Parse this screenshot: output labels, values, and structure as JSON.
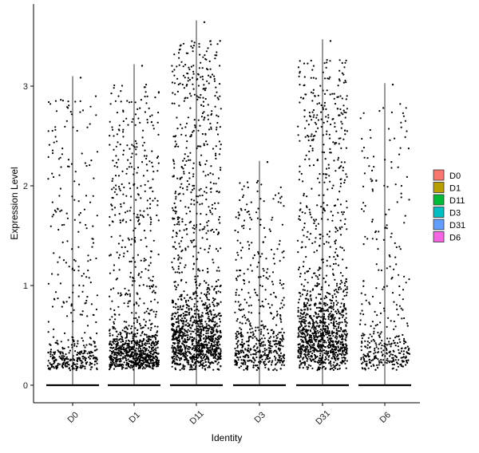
{
  "chart_data": {
    "type": "scatter",
    "xlabel": "Identity",
    "ylabel": "Expression Level",
    "categories": [
      "D0",
      "D1",
      "D11",
      "D3",
      "D31",
      "D6"
    ],
    "ylim": [
      -0.2,
      3.85
    ],
    "yticks": [
      0,
      1,
      2,
      3
    ],
    "legend": {
      "position": "right",
      "entries": [
        {
          "label": "D0",
          "color": "#F8766D"
        },
        {
          "label": "D1",
          "color": "#B79F00"
        },
        {
          "label": "D11",
          "color": "#00BA38"
        },
        {
          "label": "D3",
          "color": "#00BFC4"
        },
        {
          "label": "D31",
          "color": "#619CFF"
        },
        {
          "label": "D6",
          "color": "#F564E3"
        }
      ]
    },
    "series": [
      {
        "category": "D0",
        "max": 3.1,
        "n_points": 420,
        "dense_low": 0.1
      },
      {
        "category": "D1",
        "max": 3.22,
        "n_points": 1050,
        "dense_low": 0.2
      },
      {
        "category": "D11",
        "max": 3.66,
        "n_points": 1450,
        "dense_low": 0.55
      },
      {
        "category": "D3",
        "max": 2.25,
        "n_points": 560,
        "dense_low": 0.35
      },
      {
        "category": "D31",
        "max": 3.47,
        "n_points": 1300,
        "dense_low": 0.6
      },
      {
        "category": "D6",
        "max": 3.03,
        "n_points": 380,
        "dense_low": 0.25
      }
    ]
  }
}
